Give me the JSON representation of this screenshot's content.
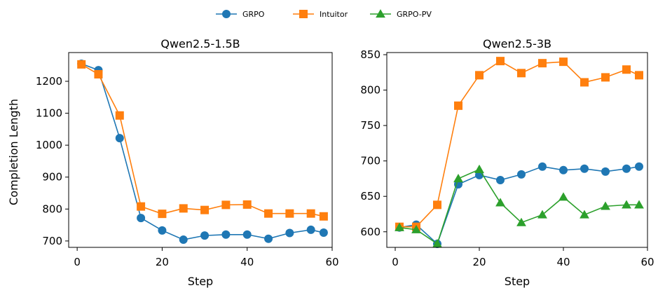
{
  "legend": {
    "items": [
      {
        "name": "GRPO",
        "color": "#1f77b4",
        "marker": "circle"
      },
      {
        "name": "Intuitor",
        "color": "#ff7f0e",
        "marker": "square"
      },
      {
        "name": "GRPO-PV",
        "color": "#2ca02c",
        "marker": "triangle"
      }
    ]
  },
  "chart_data": [
    {
      "type": "line",
      "title": "Qwen2.5-1.5B",
      "xlabel": "Step",
      "ylabel": "Completion Length",
      "xlim": [
        -2,
        60
      ],
      "ylim": [
        680,
        1290
      ],
      "xticks": [
        0,
        20,
        40,
        60
      ],
      "yticks": [
        700,
        800,
        900,
        1000,
        1100,
        1200
      ],
      "x": [
        1,
        5,
        10,
        15,
        20,
        25,
        30,
        35,
        40,
        45,
        50,
        55,
        58
      ],
      "grid": false,
      "series": [
        {
          "name": "GRPO",
          "color": "#1f77b4",
          "marker": "circle",
          "values": [
            1255,
            1235,
            1022,
            772,
            733,
            704,
            717,
            720,
            720,
            707,
            725,
            735,
            726
          ]
        },
        {
          "name": "Intuitor",
          "color": "#ff7f0e",
          "marker": "square",
          "values": [
            1253,
            1222,
            1093,
            808,
            785,
            802,
            797,
            813,
            814,
            786,
            786,
            786,
            777
          ]
        }
      ]
    },
    {
      "type": "line",
      "title": "Qwen2.5-3B",
      "xlabel": "Step",
      "ylabel": "",
      "xlim": [
        -2,
        60
      ],
      "ylim": [
        578,
        853
      ],
      "xticks": [
        0,
        20,
        40,
        60
      ],
      "yticks": [
        600,
        650,
        700,
        750,
        800,
        850
      ],
      "x": [
        1,
        5,
        10,
        15,
        20,
        25,
        30,
        35,
        40,
        45,
        50,
        55,
        58
      ],
      "grid": false,
      "series": [
        {
          "name": "GRPO",
          "color": "#1f77b4",
          "marker": "circle",
          "values": [
            606,
            610,
            583,
            667,
            680,
            673,
            681,
            692,
            687,
            689,
            685,
            689,
            692
          ]
        },
        {
          "name": "Intuitor",
          "color": "#ff7f0e",
          "marker": "square",
          "values": [
            607,
            607,
            638,
            778,
            821,
            841,
            824,
            838,
            840,
            811,
            818,
            829,
            821
          ]
        },
        {
          "name": "GRPO-PV",
          "color": "#2ca02c",
          "marker": "triangle",
          "values": [
            606,
            603,
            583,
            675,
            688,
            641,
            613,
            624,
            649,
            624,
            636,
            638,
            638
          ]
        }
      ]
    }
  ]
}
